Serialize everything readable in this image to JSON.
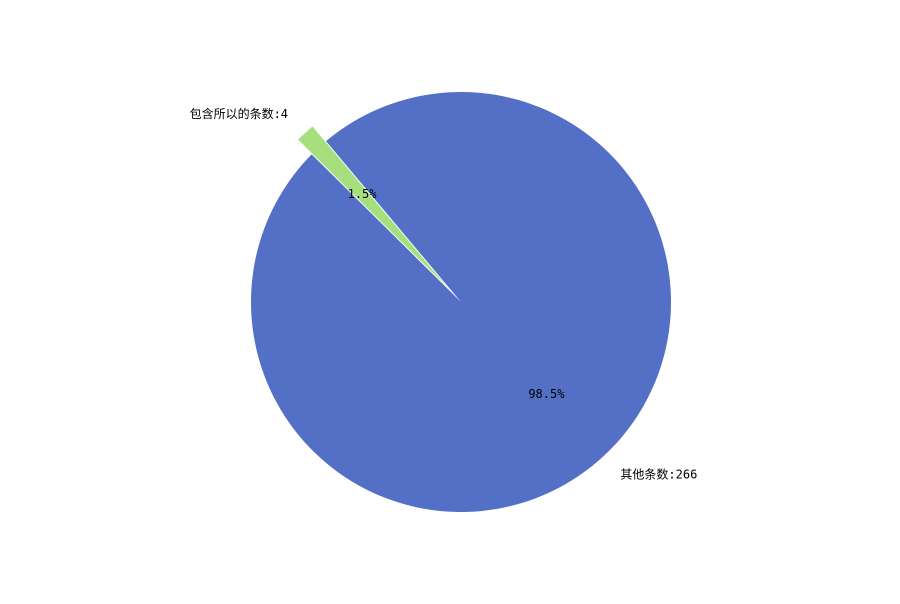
{
  "chart_data": {
    "type": "pie",
    "title": "",
    "start_angle_deg": 130,
    "slices": [
      {
        "label": "包含所以的条数:4",
        "value": 4,
        "percent_label": "1.5%",
        "color": "#a6e07e",
        "explode": true
      },
      {
        "label": "其他条数:266",
        "value": 266,
        "percent_label": "98.5%",
        "color": "#5470c6",
        "explode": false
      }
    ],
    "legend": false
  }
}
